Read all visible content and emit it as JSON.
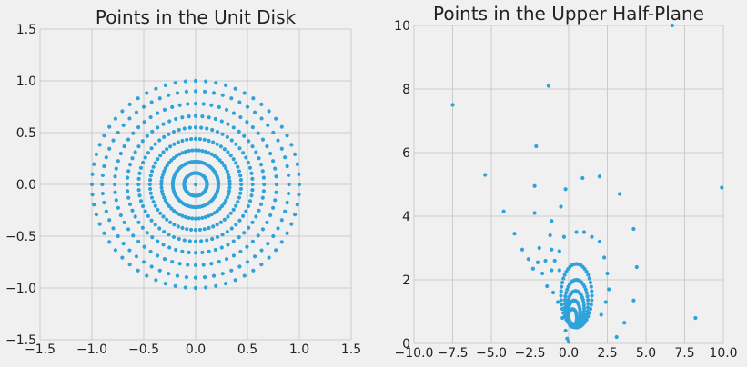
{
  "figure": {
    "background_color": "#f0f0f0",
    "grid_color": "#cbcbcb",
    "point_color": "#30a2da"
  },
  "chart_data": [
    {
      "type": "scatter",
      "title": "Points in the Unit Disk",
      "xlabel": "",
      "ylabel": "",
      "xlim": [
        -1.5,
        1.5
      ],
      "ylim": [
        -1.5,
        1.5
      ],
      "xticks": [
        "−1.5",
        "−1.0",
        "−0.5",
        "0.0",
        "0.5",
        "1.0",
        "1.5"
      ],
      "yticks": [
        "−1.5",
        "−1.0",
        "−0.5",
        "0.0",
        "0.5",
        "1.0",
        "1.5"
      ],
      "grid": true,
      "series": [
        {
          "point_sets": [
            {
              "shape": "circle",
              "center": [
                0,
                0
              ],
              "radius": 1.0,
              "count": 64
            },
            {
              "shape": "circle",
              "center": [
                0,
                0
              ],
              "radius": 0.9,
              "count": 64
            },
            {
              "shape": "circle",
              "center": [
                0,
                0
              ],
              "radius": 0.78,
              "count": 64
            },
            {
              "shape": "circle",
              "center": [
                0,
                0
              ],
              "radius": 0.66,
              "count": 64
            },
            {
              "shape": "circle",
              "center": [
                0,
                0
              ],
              "radius": 0.55,
              "count": 64
            },
            {
              "shape": "circle",
              "center": [
                0,
                0
              ],
              "radius": 0.44,
              "count": 64
            },
            {
              "shape": "circle",
              "center": [
                0,
                0
              ],
              "radius": 0.33,
              "count": 64
            },
            {
              "shape": "circle",
              "center": [
                0,
                0
              ],
              "radius": 0.22,
              "count": 64
            },
            {
              "shape": "circle",
              "center": [
                0,
                0
              ],
              "radius": 0.11,
              "count": 64
            }
          ],
          "points": [
            [
              0,
              0
            ]
          ]
        }
      ]
    },
    {
      "type": "scatter",
      "title": "Points in the Upper Half-Plane",
      "xlabel": "",
      "ylabel": "",
      "xlim": [
        -10,
        10
      ],
      "ylim": [
        0,
        10
      ],
      "xticks": [
        "−10.0",
        "−7.5",
        "−5.0",
        "−2.5",
        "0.0",
        "2.5",
        "5.0",
        "7.5",
        "10.0"
      ],
      "yticks": [
        "0",
        "2",
        "4",
        "6",
        "8",
        "10"
      ],
      "grid": true,
      "series": [
        {
          "point_sets": [
            {
              "shape": "circle",
              "center": [
                0.5,
                1.5
              ],
              "radius": 1.0,
              "count": 44
            },
            {
              "shape": "circle",
              "center": [
                0.5,
                1.25
              ],
              "radius": 0.75,
              "count": 40
            },
            {
              "shape": "circle",
              "center": [
                0.45,
                1.1
              ],
              "radius": 0.55,
              "count": 36
            },
            {
              "shape": "circle",
              "center": [
                0.35,
                0.95
              ],
              "radius": 0.4,
              "count": 32
            },
            {
              "shape": "circle",
              "center": [
                0.25,
                0.8
              ],
              "radius": 0.28,
              "count": 28
            }
          ],
          "points": [
            [
              -7.5,
              7.5
            ],
            [
              -1.3,
              8.1
            ],
            [
              6.7,
              10.0
            ],
            [
              9.9,
              4.9
            ],
            [
              -5.4,
              5.3
            ],
            [
              -2.1,
              6.2
            ],
            [
              -2.2,
              4.95
            ],
            [
              -4.2,
              4.15
            ],
            [
              -2.2,
              4.1
            ],
            [
              -0.2,
              4.85
            ],
            [
              0.9,
              5.2
            ],
            [
              2.0,
              5.25
            ],
            [
              3.3,
              4.7
            ],
            [
              -0.5,
              4.3
            ],
            [
              -1.1,
              3.85
            ],
            [
              -3.5,
              3.45
            ],
            [
              -1.2,
              3.4
            ],
            [
              -0.3,
              3.35
            ],
            [
              0.5,
              3.5
            ],
            [
              1.0,
              3.5
            ],
            [
              1.5,
              3.35
            ],
            [
              2.0,
              3.2
            ],
            [
              4.2,
              3.6
            ],
            [
              -3.0,
              2.95
            ],
            [
              -1.9,
              3.0
            ],
            [
              -1.1,
              2.95
            ],
            [
              -0.6,
              2.9
            ],
            [
              -2.6,
              2.65
            ],
            [
              -2.0,
              2.55
            ],
            [
              -1.5,
              2.6
            ],
            [
              -0.9,
              2.6
            ],
            [
              -1.7,
              2.2
            ],
            [
              -1.1,
              2.3
            ],
            [
              -0.6,
              2.3
            ],
            [
              -2.3,
              2.35
            ],
            [
              2.3,
              2.7
            ],
            [
              4.4,
              2.4
            ],
            [
              2.5,
              2.2
            ],
            [
              2.6,
              1.7
            ],
            [
              2.4,
              1.3
            ],
            [
              4.2,
              1.35
            ],
            [
              2.1,
              0.9
            ],
            [
              3.6,
              0.65
            ],
            [
              3.1,
              0.2
            ],
            [
              8.2,
              0.8
            ],
            [
              -1.4,
              1.8
            ],
            [
              -1.0,
              1.6
            ],
            [
              -0.7,
              1.3
            ],
            [
              -0.4,
              0.8
            ],
            [
              -0.2,
              0.4
            ],
            [
              -0.1,
              0.15
            ],
            [
              0.0,
              0.05
            ]
          ]
        }
      ]
    }
  ]
}
